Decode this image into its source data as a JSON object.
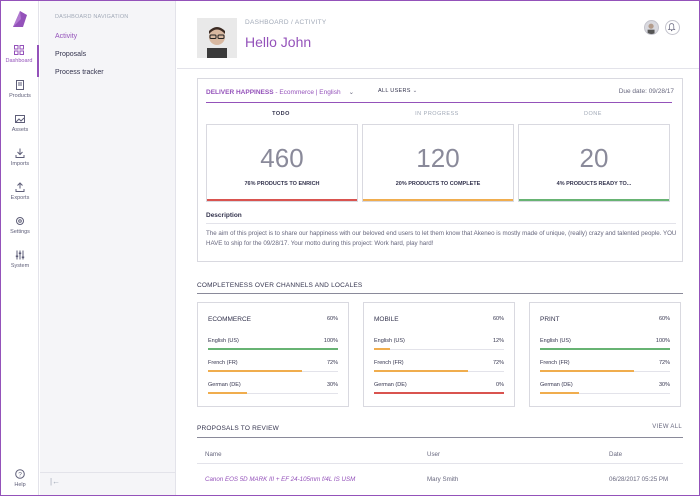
{
  "rail": {
    "items": [
      {
        "label": "Dashboard",
        "icon": "dashboard-icon",
        "active": true
      },
      {
        "label": "Products",
        "icon": "products-icon"
      },
      {
        "label": "Assets",
        "icon": "assets-icon"
      },
      {
        "label": "Imports",
        "icon": "imports-icon"
      },
      {
        "label": "Exports",
        "icon": "exports-icon"
      },
      {
        "label": "Settings",
        "icon": "settings-icon"
      },
      {
        "label": "System",
        "icon": "system-icon"
      }
    ],
    "help": "Help"
  },
  "nav": {
    "title": "DASHBOARD NAVIGATION",
    "items": [
      {
        "label": "Activity",
        "active": true
      },
      {
        "label": "Proposals"
      },
      {
        "label": "Process tracker"
      }
    ]
  },
  "header": {
    "breadcrumb": "DASHBOARD  /  ACTIVITY",
    "greeting": "Hello John"
  },
  "project": {
    "name": "DELIVER HAPPINESS",
    "scope": " - Ecommerce | English",
    "users_filter": "ALL USERS",
    "due": "Due date: 09/28/17",
    "columns": [
      {
        "head": "TODO",
        "value": "460",
        "label": "76% PRODUCTS TO ENRICH",
        "color": "#d9534f"
      },
      {
        "head": "IN PROGRESS",
        "value": "120",
        "label": "20% PRODUCTS TO COMPLETE",
        "color": "#f0ad4e"
      },
      {
        "head": "DONE",
        "value": "20",
        "label": "4% PRODUCTS READY TO...",
        "color": "#67b373"
      }
    ],
    "description_title": "Description",
    "description": "The aim of this project is to share our happiness with our beloved end users to let them know that Akeneo is mostly made of unique, (really) crazy and talented people. YOU HAVE to ship for the 09/28/17. Your motto during this project: Work hard, play hard!"
  },
  "completeness": {
    "title": "COMPLETENESS OVER CHANNELS AND LOCALES",
    "channels": [
      {
        "name": "ECOMMERCE",
        "pct": "60%",
        "locales": [
          {
            "name": "English (US)",
            "value": "100%",
            "ratio": 1.0,
            "color": "#67b373"
          },
          {
            "name": "French (FR)",
            "value": "72%",
            "ratio": 0.72,
            "color": "#f0ad4e"
          },
          {
            "name": "German (DE)",
            "value": "30%",
            "ratio": 0.3,
            "color": "#f0ad4e"
          }
        ]
      },
      {
        "name": "MOBILE",
        "pct": "60%",
        "locales": [
          {
            "name": "English (US)",
            "value": "12%",
            "ratio": 0.12,
            "color": "#f0ad4e"
          },
          {
            "name": "French (FR)",
            "value": "72%",
            "ratio": 0.72,
            "color": "#f0ad4e"
          },
          {
            "name": "German (DE)",
            "value": "0%",
            "ratio": 0.0,
            "color": "#d9534f"
          }
        ]
      },
      {
        "name": "PRINT",
        "pct": "60%",
        "locales": [
          {
            "name": "English (US)",
            "value": "100%",
            "ratio": 1.0,
            "color": "#67b373"
          },
          {
            "name": "French (FR)",
            "value": "72%",
            "ratio": 0.72,
            "color": "#f0ad4e"
          },
          {
            "name": "German (DE)",
            "value": "30%",
            "ratio": 0.3,
            "color": "#f0ad4e"
          }
        ]
      }
    ]
  },
  "proposals": {
    "title": "PROPOSALS TO REVIEW",
    "view_all": "VIEW ALL",
    "headers": [
      "Name",
      "User",
      "Date"
    ],
    "rows": [
      {
        "name": "Canon EOS 5D MARK III + EF 24-105mm f/4L IS USM",
        "user": "Mary Smith",
        "date": "06/28/2017 05:25 PM"
      }
    ]
  },
  "colors": {
    "accent": "#9452ba",
    "danger": "#d9534f",
    "warning": "#f0ad4e",
    "success": "#67b373"
  }
}
